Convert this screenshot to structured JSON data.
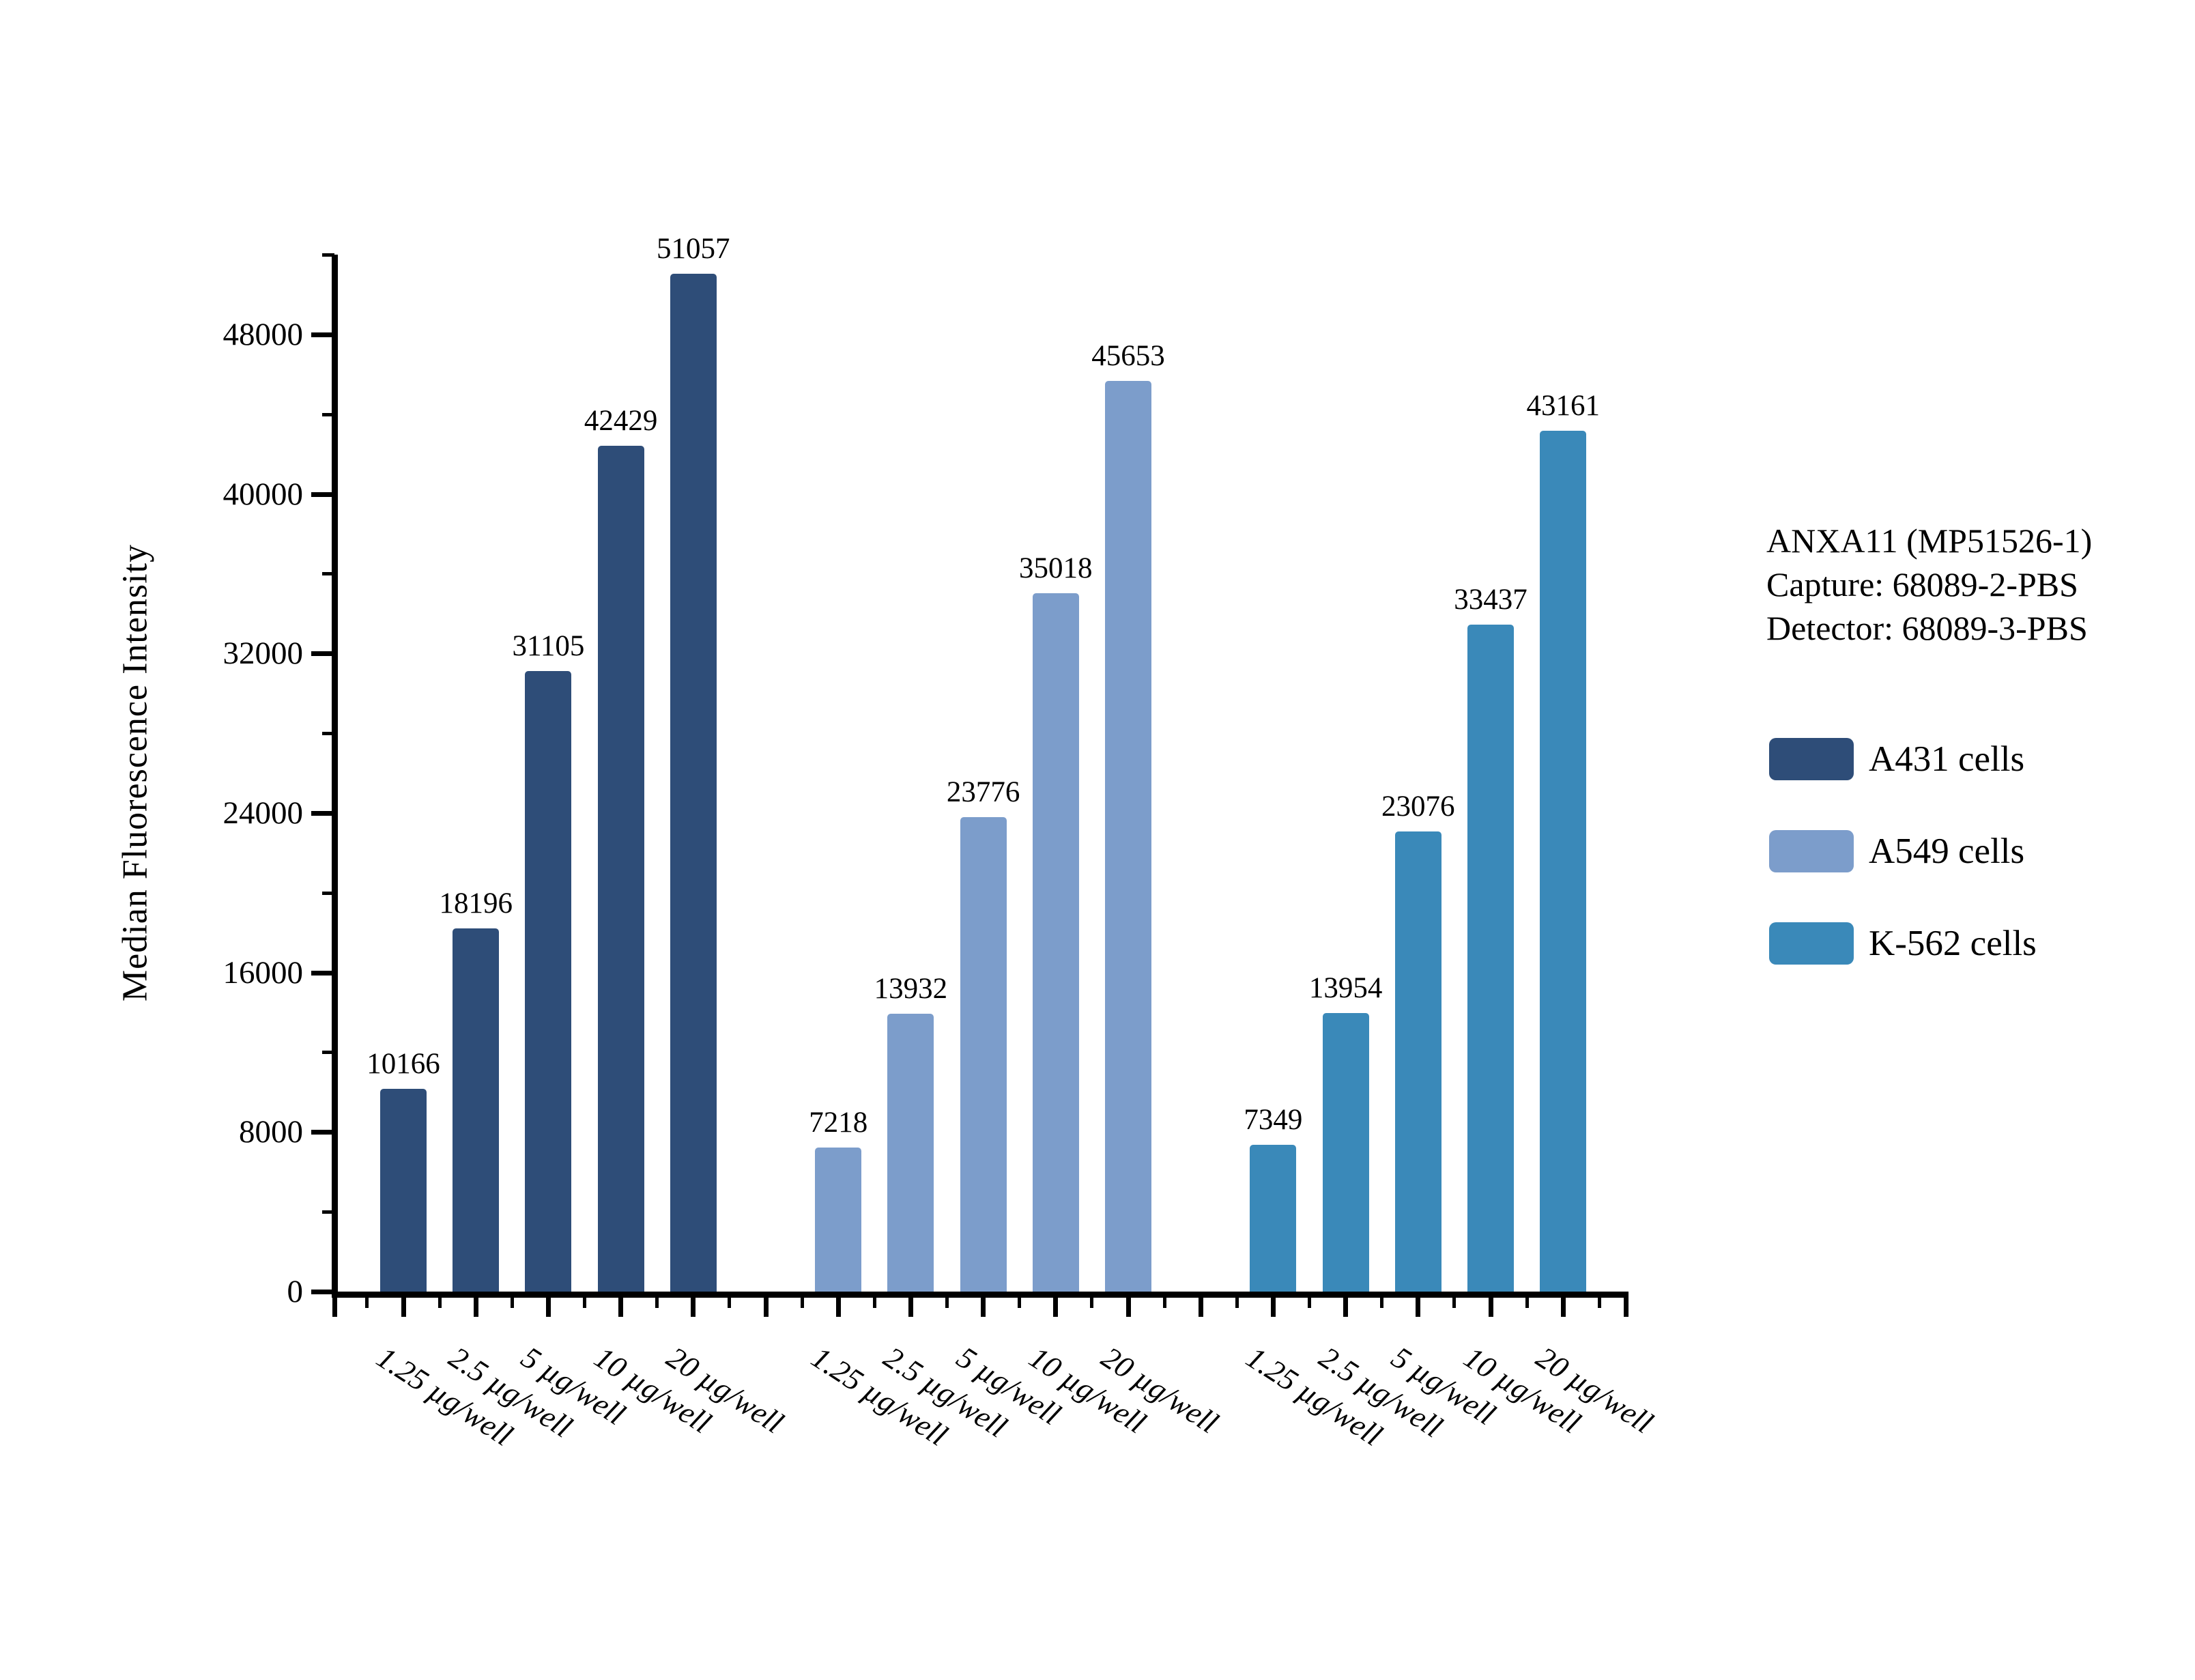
{
  "chart_data": {
    "type": "bar",
    "title": "",
    "xlabel": "",
    "ylabel": "Median Fluorescence Intensity",
    "ylim": [
      0,
      52000
    ],
    "y_major_ticks": [
      0,
      8000,
      16000,
      24000,
      32000,
      40000,
      48000
    ],
    "y_minor_step": 4000,
    "grid": false,
    "bar_labels": true,
    "legend_position": "right",
    "categories": [
      "1.25 µg/well",
      "2.5 µg/well",
      "5 µg/well",
      "10 µg/well",
      "20 µg/well"
    ],
    "series": [
      {
        "name": "A431 cells",
        "color": "#2E4D78",
        "values": [
          10166,
          18196,
          31105,
          42429,
          51057
        ]
      },
      {
        "name": "A549 cells",
        "color": "#7C9DCB",
        "values": [
          7218,
          13932,
          23776,
          35018,
          45653
        ]
      },
      {
        "name": "K-562 cells",
        "color": "#3A89B9",
        "values": [
          7349,
          13954,
          23076,
          33437,
          43161
        ]
      }
    ],
    "annotation": {
      "lines": [
        "ANXA11 (MP51526-1)",
        "Capture: 68089-2-PBS",
        "Detector: 68089-3-PBS"
      ]
    }
  }
}
